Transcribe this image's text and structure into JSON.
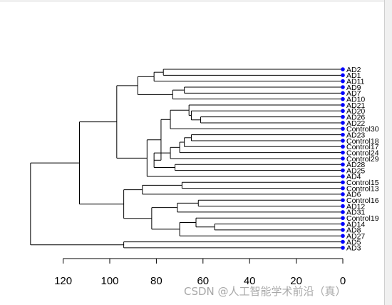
{
  "chart_data": {
    "type": "dendrogram",
    "orientation": "leaves-right",
    "leaves": [
      "AD2",
      "AD1",
      "AD11",
      "AD9",
      "AD7",
      "AD10",
      "AD21",
      "AD20",
      "AD26",
      "AD22",
      "Control30",
      "AD23",
      "Control18",
      "Control17",
      "Control24",
      "Control29",
      "AD28",
      "AD25",
      "AD4",
      "Control15",
      "Control13",
      "AD6",
      "Control16",
      "AD12",
      "AD31",
      "Control19",
      "AD14",
      "AD8",
      "AD27",
      "AD5",
      "AD3"
    ],
    "merges": [
      {
        "id": "m1",
        "a": "AD2",
        "b": "AD1",
        "height": 77
      },
      {
        "id": "m2",
        "a": "m1",
        "b": "AD11",
        "height": 81
      },
      {
        "id": "m3",
        "a": "AD9",
        "b": "AD7",
        "height": 68
      },
      {
        "id": "m4",
        "a": "m3",
        "b": "AD10",
        "height": 73
      },
      {
        "id": "m5",
        "a": "m2",
        "b": "m4",
        "height": 88
      },
      {
        "id": "m6",
        "a": "AD26",
        "b": "AD22",
        "height": 61
      },
      {
        "id": "m7",
        "a": "AD20",
        "b": "m6",
        "height": 65
      },
      {
        "id": "m8",
        "a": "AD21",
        "b": "m7",
        "height": 66
      },
      {
        "id": "m9",
        "a": "m8",
        "b": "Control30",
        "height": 74
      },
      {
        "id": "m10",
        "a": "AD23",
        "b": "Control18",
        "height": 65
      },
      {
        "id": "m11",
        "a": "m10",
        "b": "Control17",
        "height": 68
      },
      {
        "id": "m12",
        "a": "m11",
        "b": "Control24",
        "height": 70
      },
      {
        "id": "m13",
        "a": "m12",
        "b": "Control29",
        "height": 74
      },
      {
        "id": "m14",
        "a": "AD28",
        "b": "AD25",
        "height": 72
      },
      {
        "id": "m15",
        "a": "m13",
        "b": "m14",
        "height": 81
      },
      {
        "id": "m16",
        "a": "m9",
        "b": "m15",
        "height": 78
      },
      {
        "id": "m17",
        "a": "m16",
        "b": "AD4",
        "height": 84
      },
      {
        "id": "m18",
        "a": "m5",
        "b": "m17",
        "height": 97
      },
      {
        "id": "m19",
        "a": "Control15",
        "b": "Control13",
        "height": 69
      },
      {
        "id": "m20",
        "a": "m19",
        "b": "AD6",
        "height": 86
      },
      {
        "id": "m21",
        "a": "Control16",
        "b": "AD12",
        "height": 62
      },
      {
        "id": "m22",
        "a": "m21",
        "b": "AD31",
        "height": 71
      },
      {
        "id": "m23",
        "a": "AD14",
        "b": "AD8",
        "height": 55
      },
      {
        "id": "m24",
        "a": "Control19",
        "b": "m23",
        "height": 63
      },
      {
        "id": "m25",
        "a": "m24",
        "b": "AD27",
        "height": 70
      },
      {
        "id": "m26",
        "a": "m22",
        "b": "m25",
        "height": 82
      },
      {
        "id": "m27",
        "a": "m20",
        "b": "m26",
        "height": 94
      },
      {
        "id": "m28",
        "a": "m18",
        "b": "m27",
        "height": 113
      },
      {
        "id": "m29",
        "a": "AD5",
        "b": "AD3",
        "height": 94
      },
      {
        "id": "m30",
        "a": "m28",
        "b": "m29",
        "height": 134
      }
    ],
    "axis": {
      "ticks": [
        120,
        100,
        80,
        60,
        40,
        20,
        0
      ],
      "tick_labels": [
        "120",
        "100",
        "80",
        "60",
        "40",
        "20",
        "0"
      ],
      "range": [
        120,
        0
      ]
    },
    "colors": {
      "leaf_marker": "#0000ff",
      "lines": "#000000"
    }
  },
  "watermark": "CSDN @人工智能学术前沿（真）"
}
